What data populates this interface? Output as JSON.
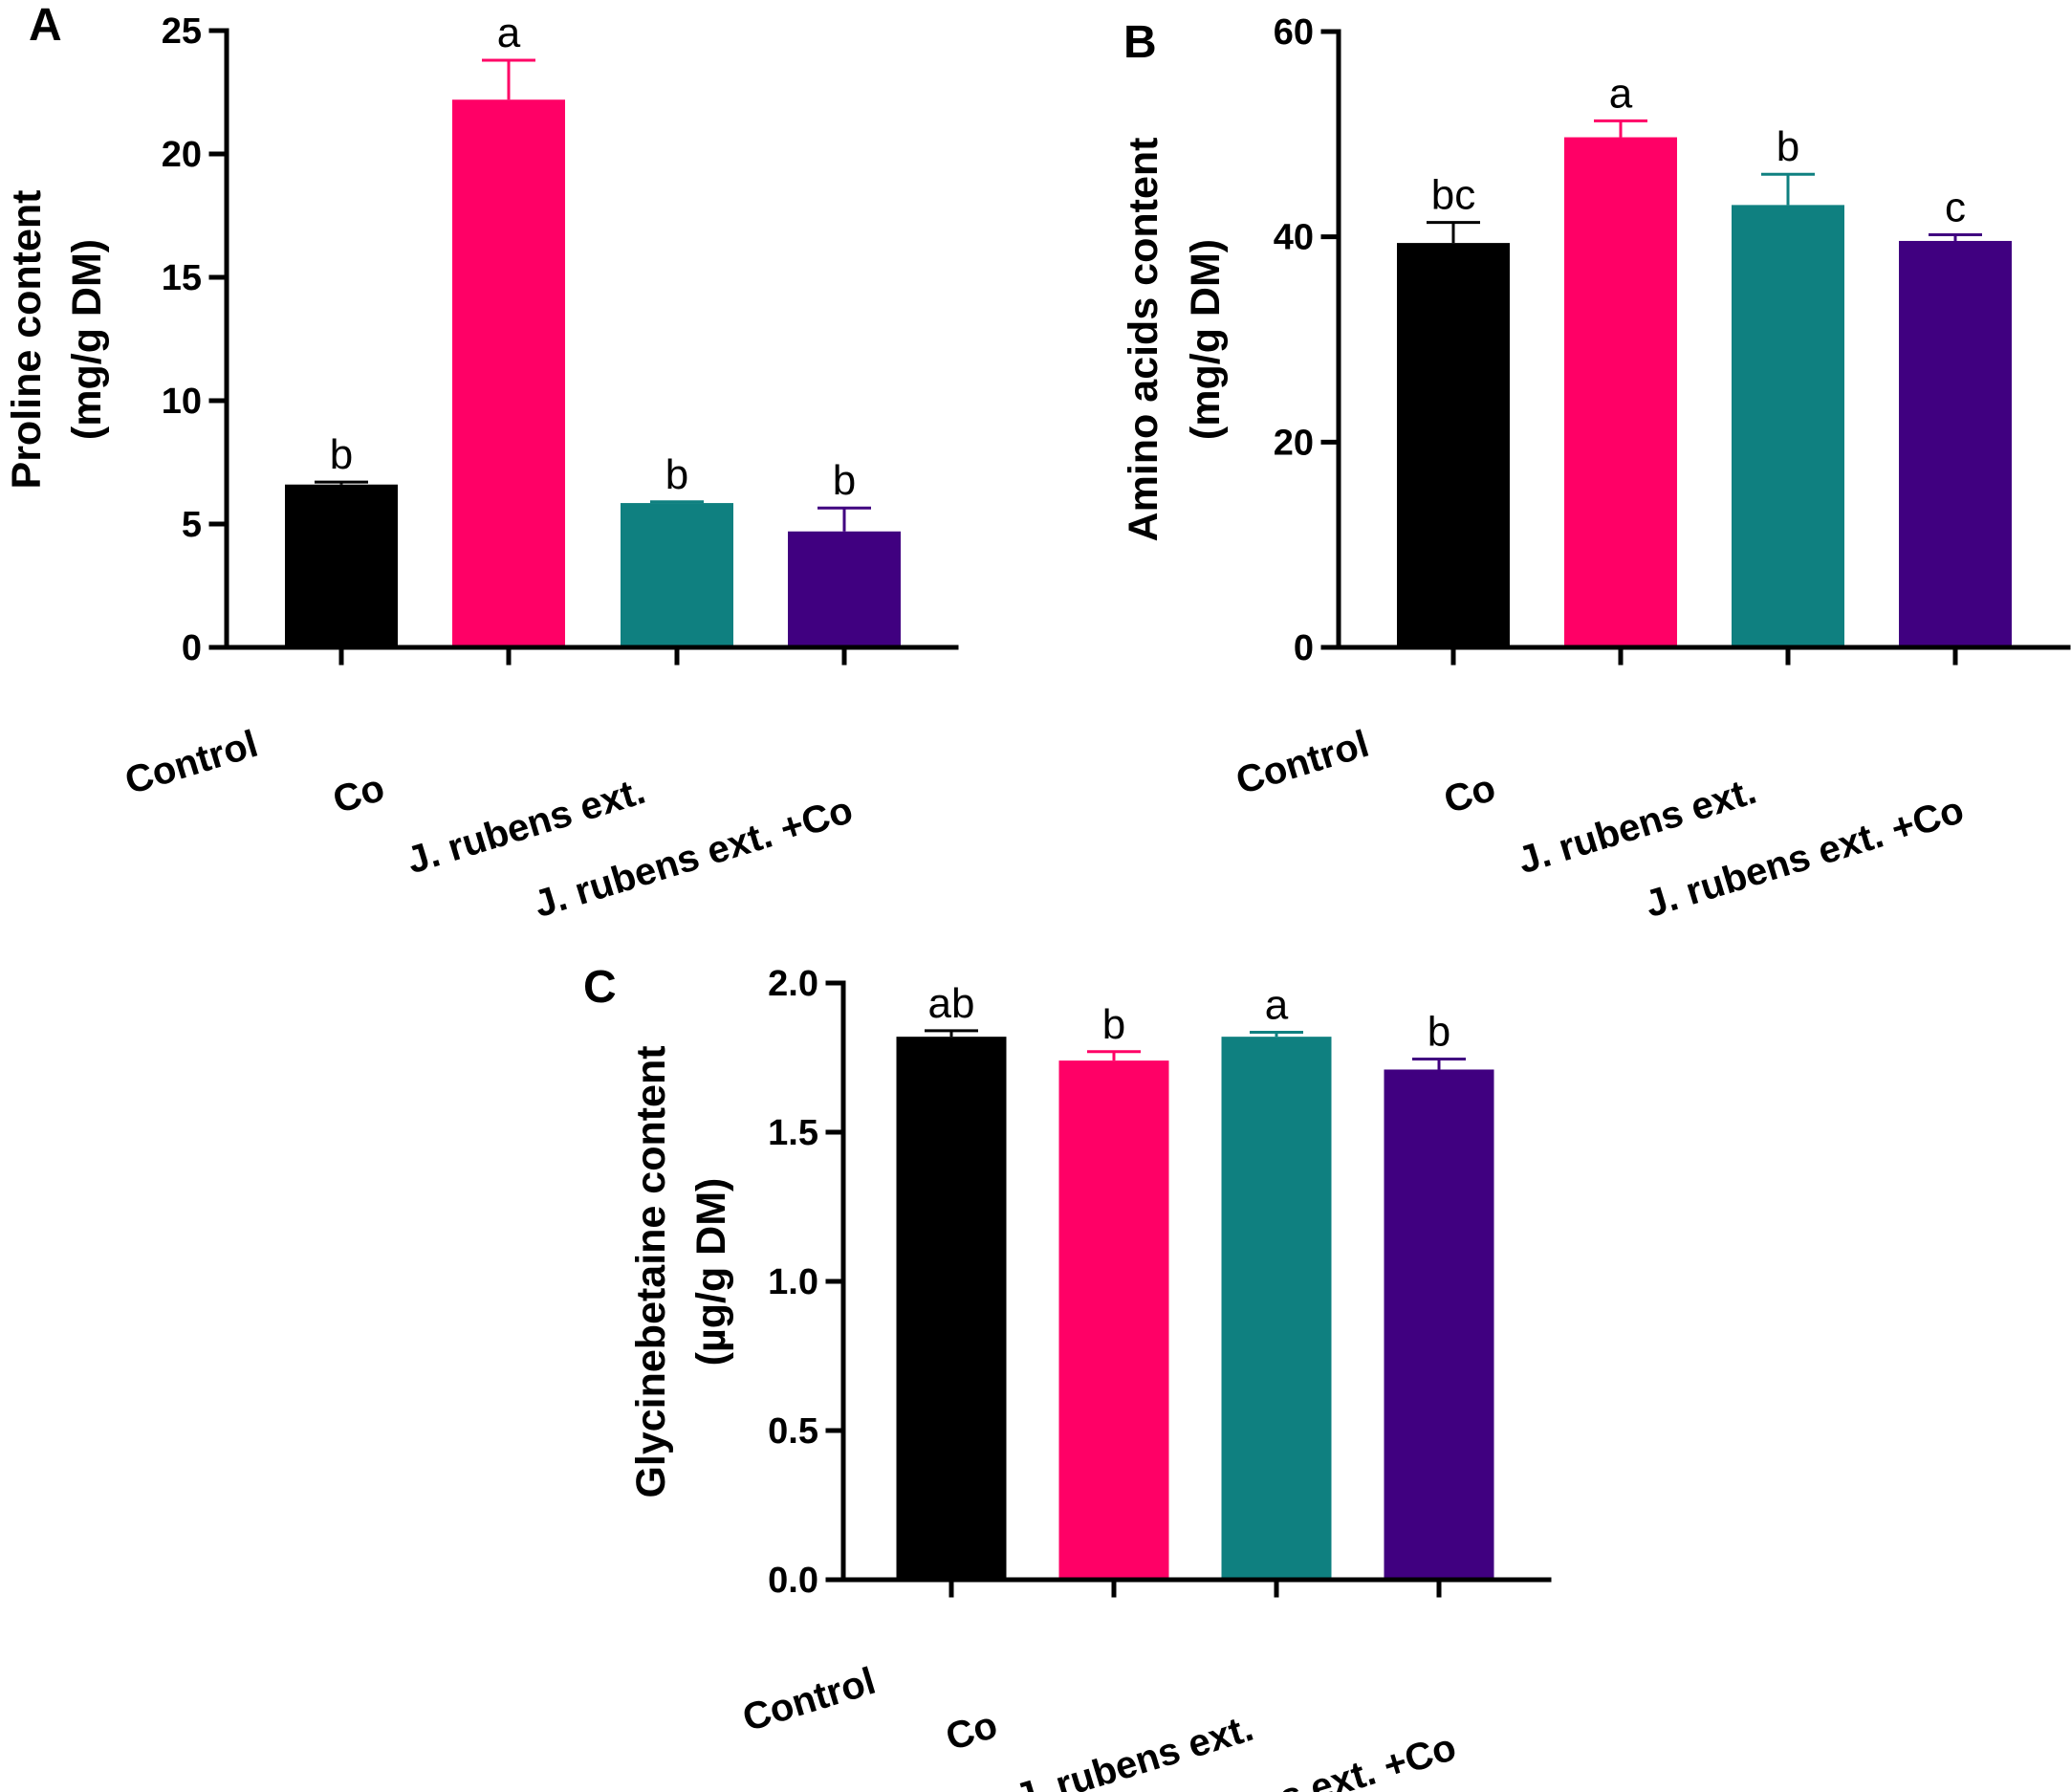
{
  "chart_data": [
    {
      "panel": "A",
      "type": "bar",
      "ylabel_line1": "Proline content",
      "ylabel_line2": "(mg/g DM)",
      "categories": [
        "Control",
        "Co",
        "J. rubens ext.",
        "J. rubens ext. +Co"
      ],
      "values": [
        6.6,
        22.2,
        5.85,
        4.7
      ],
      "errors": [
        0.1,
        1.6,
        0.05,
        0.95
      ],
      "letters": [
        "b",
        "a",
        "b",
        "b"
      ],
      "colors": [
        "#000000",
        "#FF0066",
        "#0F8080",
        "#400080"
      ],
      "ylim": [
        0,
        25
      ],
      "yticks": [
        0,
        5,
        10,
        15,
        20,
        25
      ],
      "ytick_labels": [
        "0",
        "5",
        "10",
        "15",
        "20",
        "25"
      ]
    },
    {
      "panel": "B",
      "type": "bar",
      "ylabel_line1": "Amino acids content",
      "ylabel_line2": "(mg/g DM)",
      "categories": [
        "Control",
        "Co",
        "J. rubens ext.",
        "J. rubens ext. +Co"
      ],
      "values": [
        39.4,
        49.7,
        43.1,
        39.6
      ],
      "errors": [
        2.0,
        1.6,
        3.0,
        0.6
      ],
      "letters": [
        "bc",
        "a",
        "b",
        "c"
      ],
      "colors": [
        "#000000",
        "#FF0066",
        "#0F8080",
        "#400080"
      ],
      "ylim": [
        0,
        60
      ],
      "yticks": [
        0,
        20,
        40,
        60
      ],
      "ytick_labels": [
        "0",
        "20",
        "40",
        "60"
      ]
    },
    {
      "panel": "C",
      "type": "bar",
      "ylabel_line1": "Glycinebetaine content",
      "ylabel_line2": "(µg/g DM)",
      "categories": [
        "Control",
        "Co",
        "J. rubens ext.",
        "J. rubens ext. +Co"
      ],
      "values": [
        1.82,
        1.74,
        1.82,
        1.71
      ],
      "errors": [
        0.02,
        0.03,
        0.015,
        0.035
      ],
      "letters": [
        "ab",
        "b",
        "a",
        "b"
      ],
      "colors": [
        "#000000",
        "#FF0066",
        "#0F8080",
        "#400080"
      ],
      "ylim": [
        0,
        2.0
      ],
      "yticks": [
        0,
        0.5,
        1.0,
        1.5,
        2.0
      ],
      "ytick_labels": [
        "0.0",
        "0.5",
        "1.0",
        "1.5",
        "2.0"
      ]
    }
  ]
}
